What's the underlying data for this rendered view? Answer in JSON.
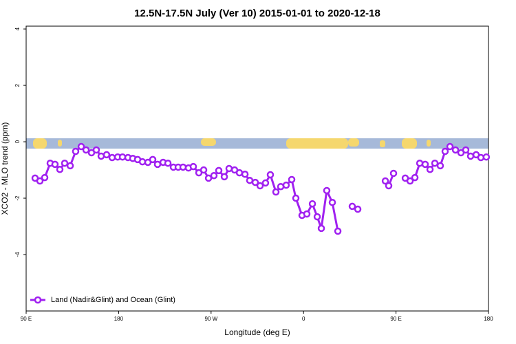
{
  "chart_data": {
    "type": "line",
    "title": "12.5N-17.5N July (Ver 10)   2015-01-01 to 2020-12-18",
    "x_label": "Longitude (deg E)",
    "y_label": "XCO2 - MLO trend (ppm)",
    "xlim": [
      90,
      540
    ],
    "ylim": [
      -6,
      4.1
    ],
    "xticks": [
      {
        "value": 90,
        "label": "90 E"
      },
      180,
      {
        "value": 270,
        "label": "90 W"
      },
      {
        "value": 360,
        "label": "0"
      },
      {
        "value": 450,
        "label": "90 E"
      },
      {
        "value": 540,
        "label": "180"
      }
    ],
    "yticks": [
      -4,
      -2,
      0,
      2,
      4
    ],
    "legend": "bottom-left",
    "x": [
      98.7,
      103.4,
      108.1,
      113.4,
      118.1,
      122.8,
      127.5,
      132.9,
      138.2,
      143.6,
      148.3,
      153.6,
      158.3,
      163.0,
      168.3,
      173.7,
      179.1,
      183.8,
      189.1,
      193.8,
      198.5,
      203.2,
      208.5,
      213.2,
      217.9,
      223.3,
      228.0,
      233.3,
      238.0,
      242.7,
      248.0,
      252.7,
      258.1,
      262.8,
      267.5,
      272.8,
      277.5,
      282.9,
      287.5,
      292.9,
      297.6,
      303.0,
      307.6,
      313.0,
      317.7,
      323.0,
      327.7,
      333.1,
      337.8,
      343.1,
      348.5,
      352.5,
      358.5,
      363.2,
      368.6,
      373.3,
      377.3,
      382.6,
      388.0,
      393.4,
      400,
      407.4,
      412.8,
      425,
      439.6,
      442.9,
      447.6,
      453,
      459.0,
      463.7,
      468.4,
      473.1,
      478.4,
      483.1,
      487.8,
      493.1,
      497.8,
      502.5,
      507.9,
      513.2,
      517.9,
      522.6,
      528.0,
      532.6,
      537.9
    ],
    "series": [
      {
        "name": "Land (Nadir&Glint) and Ocean (Glint)",
        "color": "#a020f0",
        "values": [
          -1.29,
          -1.39,
          -1.27,
          -0.76,
          -0.8,
          -0.98,
          -0.76,
          -0.85,
          -0.34,
          -0.17,
          -0.29,
          -0.39,
          -0.29,
          -0.51,
          -0.46,
          -0.56,
          -0.54,
          -0.54,
          -0.56,
          -0.59,
          -0.63,
          -0.71,
          -0.73,
          -0.63,
          -0.8,
          -0.73,
          -0.76,
          -0.9,
          -0.9,
          -0.9,
          -0.93,
          -0.88,
          -1.1,
          -1.0,
          -1.29,
          -1.2,
          -1.02,
          -1.24,
          -0.95,
          -1.0,
          -1.1,
          -1.15,
          -1.37,
          -1.44,
          -1.56,
          -1.46,
          -1.17,
          -1.78,
          -1.59,
          -1.54,
          -1.34,
          -2.0,
          -2.61,
          -2.56,
          -2.2,
          -2.66,
          -3.07,
          -1.73,
          -2.15,
          -3.17,
          null,
          -2.29,
          -2.39,
          null,
          -1.39,
          -1.56,
          -1.12,
          null,
          -1.29,
          -1.39,
          -1.27,
          -0.76,
          -0.8,
          -0.98,
          -0.76,
          -0.85,
          -0.34,
          -0.17,
          -0.29,
          -0.39,
          -0.29,
          -0.51,
          -0.46,
          -0.56,
          -0.54
        ]
      }
    ]
  }
}
